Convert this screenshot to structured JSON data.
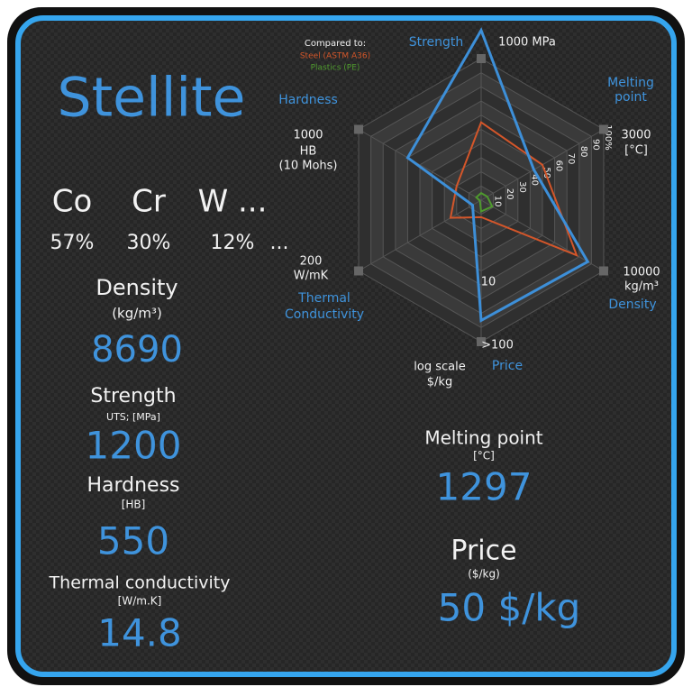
{
  "header": {
    "title": "Stellite"
  },
  "composition": [
    {
      "symbol": "Co",
      "share": "57%"
    },
    {
      "symbol": "Cr",
      "share": "30%"
    },
    {
      "symbol": "W ...",
      "share": "12%"
    }
  ],
  "composition_more": "...",
  "properties": [
    {
      "name": "Density",
      "unit": "(kg/m³)",
      "value": "8690"
    },
    {
      "name": "Strength",
      "unit": "UTS; [MPa]",
      "value": "1200"
    },
    {
      "name": "Hardness",
      "unit": "[HB]",
      "value": "550"
    },
    {
      "name": "Thermal conductivity",
      "unit": "[W/m.K]",
      "value": "14.8"
    },
    {
      "name": "Melting point",
      "unit": "[°C]",
      "value": "1297"
    },
    {
      "name": "Price",
      "unit": "($/kg)",
      "value": "50 $/kg"
    }
  ],
  "chart_data": {
    "type": "radar",
    "legend_title": "Compared to:",
    "axes": [
      {
        "name": [
          "Strength"
        ],
        "max_label": [
          "1000 MPa"
        ]
      },
      {
        "name": [
          "Melting",
          "point"
        ],
        "max_label": [
          "3000",
          "[°C]"
        ]
      },
      {
        "name": [
          "Density"
        ],
        "max_label": [
          "10000",
          "kg/m³"
        ]
      },
      {
        "name": [
          "Price"
        ],
        "max_label": [
          ">100"
        ]
      },
      {
        "name": [
          "Thermal",
          "Conductivity"
        ],
        "max_label": [
          "200",
          "W/mK"
        ]
      },
      {
        "name": [
          "Hardness"
        ],
        "max_label": [
          "1000",
          "HB",
          "(10 Mohs)"
        ]
      }
    ],
    "price_scale_note": [
      "log scale",
      "$/kg"
    ],
    "price_mid_label": "10",
    "rlim": [
      0,
      100
    ],
    "rticks": [
      10,
      20,
      30,
      40,
      50,
      60,
      70,
      80,
      90,
      {
        "value": 100,
        "label": "100%"
      }
    ],
    "series": [
      {
        "name": "Stellite",
        "color": "#3d8fd8",
        "values": [
          120,
          43,
          87,
          85,
          7,
          60
        ]
      },
      {
        "name": "Steel (ASTM A36)",
        "color": "#d4562a",
        "values": [
          55,
          50,
          78,
          12,
          25,
          20
        ]
      },
      {
        "name": "Plastics (PE)",
        "color": "#4f9a2e",
        "values": [
          5,
          5,
          9,
          8,
          1,
          4
        ]
      }
    ]
  }
}
